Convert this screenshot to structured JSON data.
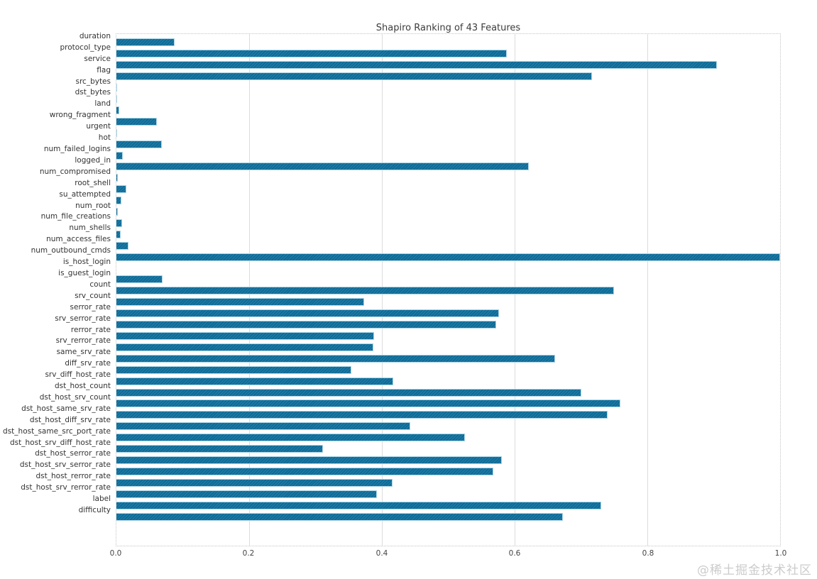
{
  "title": "Shapiro Ranking of 43 Features",
  "watermark": "@稀土掘金技术社区",
  "colors": {
    "bar_fill": "#0e6f9d",
    "bar_edge": "#a9d4e6",
    "gridline": "#dcdcdc",
    "spine": "#c4c4c4",
    "title_text": "#3c3c3c",
    "tick_text": "#444444",
    "watermark_text": "#cbcbcb",
    "background": "#ffffff"
  },
  "chart_data": {
    "type": "bar",
    "orientation": "horizontal",
    "title": "Shapiro Ranking of 43 Features",
    "xlabel": "",
    "ylabel": "",
    "xlim": [
      0.0,
      1.0
    ],
    "x_ticks": [
      0.0,
      0.2,
      0.4,
      0.6,
      0.8,
      1.0
    ],
    "grid": true,
    "categories": [
      "duration",
      "protocol_type",
      "service",
      "flag",
      "src_bytes",
      "dst_bytes",
      "land",
      "wrong_fragment",
      "urgent",
      "hot",
      "num_failed_logins",
      "logged_in",
      "num_compromised",
      "root_shell",
      "su_attempted",
      "num_root",
      "num_file_creations",
      "num_shells",
      "num_access_files",
      "num_outbound_cmds",
      "is_host_login",
      "is_guest_login",
      "count",
      "srv_count",
      "serror_rate",
      "srv_serror_rate",
      "rerror_rate",
      "srv_rerror_rate",
      "same_srv_rate",
      "diff_srv_rate",
      "srv_diff_host_rate",
      "dst_host_count",
      "dst_host_srv_count",
      "dst_host_same_srv_rate",
      "dst_host_diff_srv_rate",
      "dst_host_same_src_port_rate",
      "dst_host_srv_diff_host_rate",
      "dst_host_serror_rate",
      "dst_host_srv_serror_rate",
      "dst_host_rerror_rate",
      "dst_host_srv_rerror_rate",
      "label",
      "difficulty"
    ],
    "values": [
      0.088,
      0.588,
      0.905,
      0.717,
      0.001,
      0.001,
      0.004,
      0.061,
      0.001,
      0.068,
      0.01,
      0.621,
      0.002,
      0.015,
      0.008,
      0.002,
      0.009,
      0.006,
      0.018,
      1.0,
      0.0,
      0.069,
      0.75,
      0.373,
      0.577,
      0.572,
      0.388,
      0.387,
      0.661,
      0.354,
      0.417,
      0.701,
      0.759,
      0.74,
      0.443,
      0.525,
      0.311,
      0.581,
      0.568,
      0.416,
      0.393,
      0.731,
      0.673
    ]
  }
}
